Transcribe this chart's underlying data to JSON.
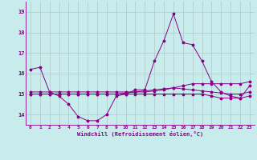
{
  "xlabel": "Windchill (Refroidissement éolien,°C)",
  "bg_color": "#c8ecec",
  "grid_color": "#b0c8c8",
  "line_color": "#880088",
  "ylim": [
    13.5,
    19.5
  ],
  "xlim": [
    -0.5,
    23.5
  ],
  "yticks": [
    14,
    15,
    16,
    17,
    18,
    19
  ],
  "xticks": [
    0,
    1,
    2,
    3,
    4,
    5,
    6,
    7,
    8,
    9,
    10,
    11,
    12,
    13,
    14,
    15,
    16,
    17,
    18,
    19,
    20,
    21,
    22,
    23
  ],
  "series": [
    [
      16.2,
      16.3,
      15.1,
      14.9,
      14.5,
      13.9,
      13.7,
      13.7,
      14.0,
      14.9,
      15.0,
      15.2,
      15.2,
      16.6,
      17.6,
      18.9,
      17.5,
      17.4,
      16.6,
      15.6,
      15.1,
      14.9,
      14.8,
      15.4
    ],
    [
      15.1,
      15.1,
      15.1,
      15.1,
      15.1,
      15.1,
      15.1,
      15.1,
      15.1,
      15.1,
      15.1,
      15.1,
      15.1,
      15.15,
      15.2,
      15.3,
      15.4,
      15.5,
      15.5,
      15.5,
      15.5,
      15.5,
      15.5,
      15.6
    ],
    [
      15.0,
      15.0,
      15.0,
      15.0,
      15.0,
      15.0,
      15.0,
      15.0,
      15.0,
      15.0,
      15.05,
      15.1,
      15.15,
      15.2,
      15.25,
      15.3,
      15.25,
      15.2,
      15.15,
      15.1,
      15.05,
      15.0,
      15.0,
      15.1
    ],
    [
      15.0,
      15.0,
      15.0,
      15.0,
      15.0,
      15.0,
      15.0,
      15.0,
      15.0,
      15.0,
      15.0,
      15.0,
      15.0,
      15.0,
      15.0,
      15.0,
      15.0,
      15.0,
      15.0,
      14.9,
      14.8,
      14.8,
      14.8,
      14.9
    ]
  ]
}
